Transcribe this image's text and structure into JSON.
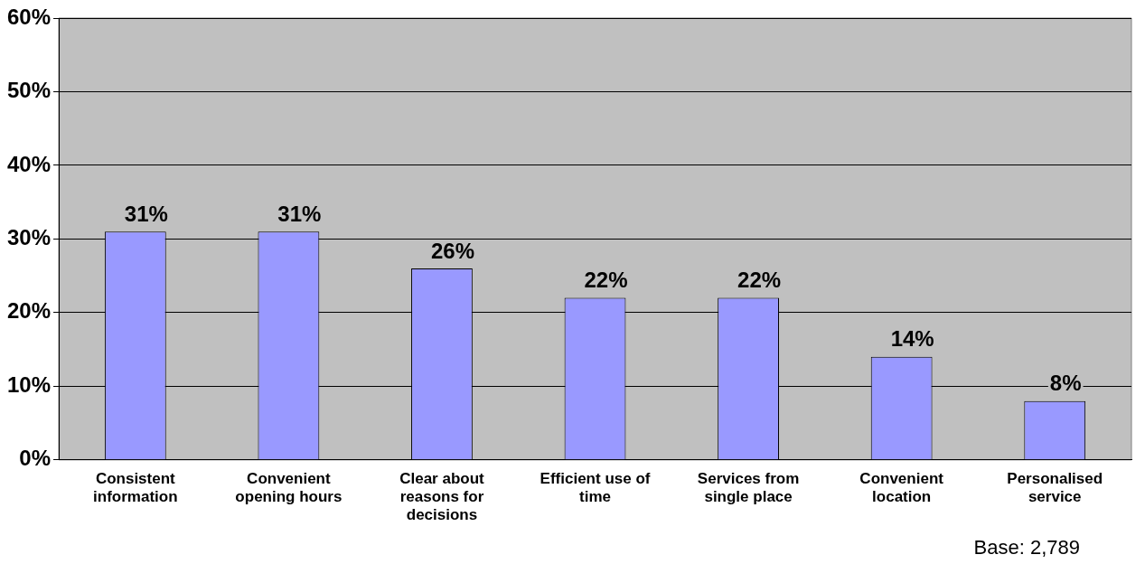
{
  "chart_data": {
    "type": "bar",
    "categories": [
      "Consistent information",
      "Convenient opening hours",
      "Clear about reasons for decisions",
      "Efficient use of time",
      "Services from single place",
      "Convenient location",
      "Personalised service"
    ],
    "values": [
      31,
      31,
      26,
      22,
      22,
      14,
      8
    ],
    "color": "#9999ff",
    "data_labels": true,
    "value_labels": [
      "31%",
      "31%",
      "26%",
      "22%",
      "22%",
      "14%",
      "8%"
    ],
    "ylim": [
      0,
      60
    ],
    "yticks": [
      {
        "value": 0,
        "label": "0%"
      },
      {
        "value": 10,
        "label": "10%"
      },
      {
        "value": 20,
        "label": "20%"
      },
      {
        "value": 30,
        "label": "30%"
      },
      {
        "value": 40,
        "label": "40%"
      },
      {
        "value": 50,
        "label": "50%"
      },
      {
        "value": 60,
        "label": "60%"
      }
    ],
    "grid": "y",
    "legend": false,
    "annotations": [
      "Base: 2,789"
    ]
  }
}
